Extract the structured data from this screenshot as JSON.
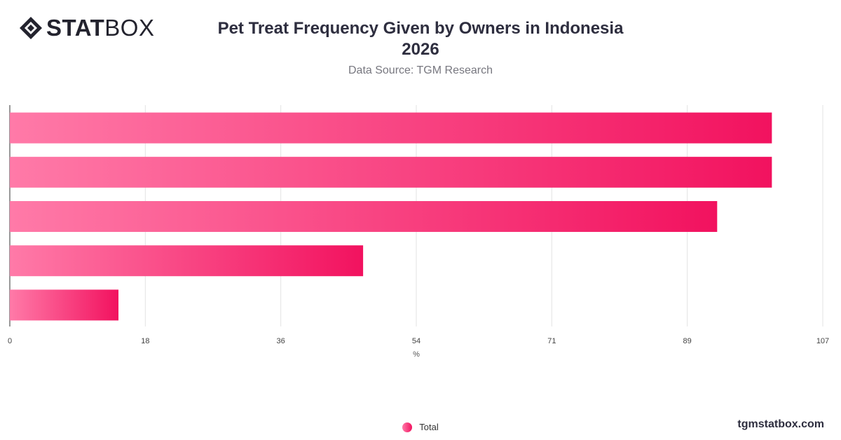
{
  "brand": {
    "logo_bold": "STAT",
    "logo_light": "BOX",
    "url": "tgmstatbox.com"
  },
  "chart_data": {
    "type": "bar",
    "orientation": "horizontal",
    "title_line1": "Pet Treat Frequency Given by Owners in Indonesia",
    "title_line2": "2026",
    "subtitle": "Data Source: TGM Research",
    "xlabel": "%",
    "xlim": [
      0,
      107
    ],
    "x_ticks": [
      "0",
      "18",
      "36",
      "54",
      "71",
      "89",
      "107"
    ],
    "categories": [
      "",
      "",
      "",
      "",
      ""
    ],
    "series": [
      {
        "name": "Total",
        "values": [
          100.3,
          100.3,
          93.1,
          46.5,
          14.3
        ]
      }
    ],
    "grid": true,
    "legend_position": "bottom",
    "colors": {
      "bar_start": "#ff7aa8",
      "bar_end": "#f2125f",
      "grid": "#e3e3e3",
      "axis": "#333333"
    }
  }
}
